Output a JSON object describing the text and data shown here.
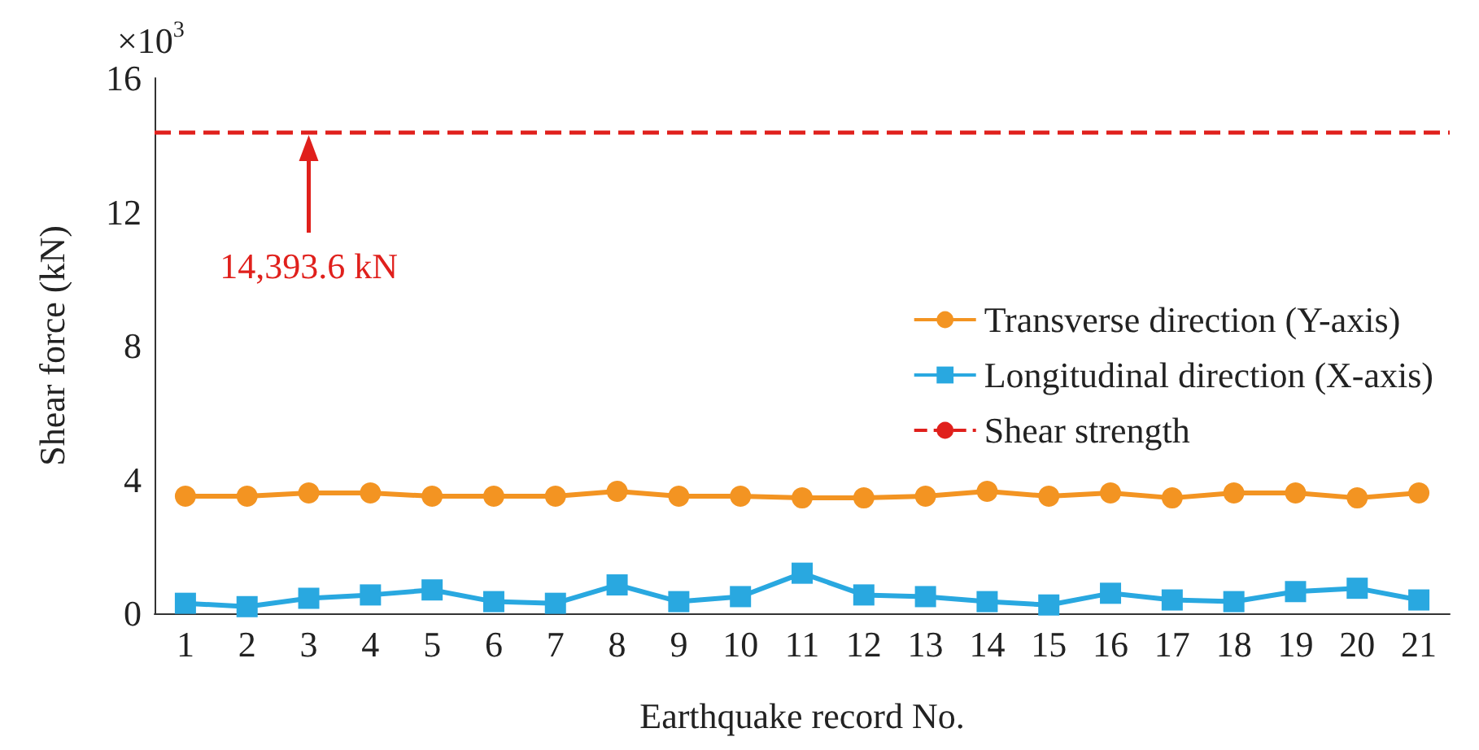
{
  "chart_data": {
    "type": "line",
    "xlabel": "Earthquake record No.",
    "ylabel": "Shear force (kN)",
    "annotations": [
      "×10$^{3}$",
      "14,393.6 kN"
    ],
    "categories": [
      "1",
      "2",
      "3",
      "4",
      "5",
      "6",
      "7",
      "8",
      "9",
      "10",
      "11",
      "12",
      "13",
      "14",
      "15",
      "16",
      "17",
      "18",
      "19",
      "20",
      "21"
    ],
    "series": [
      {
        "name": "Transverse direction (Y-axis)",
        "color": "#f39422",
        "marker": "circle",
        "values": [
          3.5,
          3.5,
          3.6,
          3.6,
          3.5,
          3.5,
          3.5,
          3.65,
          3.5,
          3.5,
          3.45,
          3.45,
          3.5,
          3.65,
          3.5,
          3.6,
          3.45,
          3.6,
          3.6,
          3.45,
          3.6
        ]
      },
      {
        "name": "Longitudinal direction (X-axis)",
        "color": "#29a8e0",
        "marker": "square",
        "values": [
          0.3,
          0.2,
          0.45,
          0.55,
          0.7,
          0.35,
          0.3,
          0.85,
          0.35,
          0.5,
          1.2,
          0.55,
          0.5,
          0.35,
          0.25,
          0.6,
          0.4,
          0.35,
          0.65,
          0.75,
          0.4
        ]
      }
    ],
    "ref_lines": [
      {
        "axis": "y",
        "value": 14.3936,
        "label": "Shear strength",
        "color": "#e0201c",
        "line_style": "dashed"
      }
    ],
    "ylim": [
      0,
      16
    ],
    "yticks": [
      0,
      4,
      8,
      12,
      16
    ],
    "grid": false,
    "legend": "right"
  }
}
